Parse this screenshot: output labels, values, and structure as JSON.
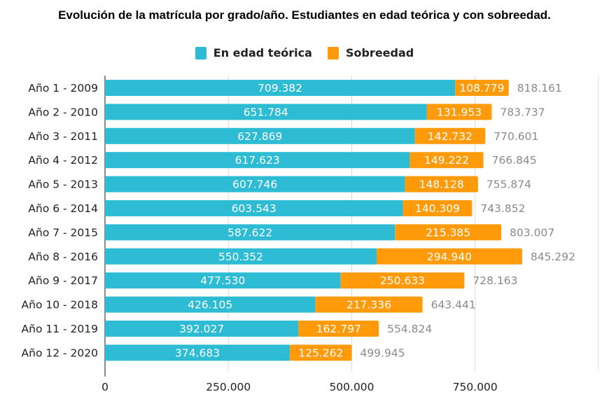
{
  "chart_data": {
    "type": "bar",
    "orientation": "horizontal",
    "stacked": true,
    "title": "Evolución de la matrícula por grado/año. Estudiantes en edad teórica y con sobreedad.",
    "xlabel": "",
    "ylabel": "",
    "xlim": [
      0,
      1000000
    ],
    "xticks": [
      0,
      250000,
      500000,
      750000,
      1000000
    ],
    "xtick_labels": [
      "0",
      "250.000",
      "500.000",
      "750.000",
      ""
    ],
    "grid": true,
    "legend_position": "top-center",
    "categories": [
      "Año 1 - 2009",
      "Año 2 - 2010",
      "Año 3 - 2011",
      "Año 4 - 2012",
      "Año 5 - 2013",
      "Año 6 - 2014",
      "Año 7 - 2015",
      "Año 8 - 2016",
      "Año 9 - 2017",
      "Año 10 - 2018",
      "Año 11 - 2019",
      "Año 12 - 2020"
    ],
    "series": [
      {
        "name": "En edad teórica",
        "color": "#2EBCD5",
        "values": [
          709382,
          651784,
          627869,
          617623,
          607746,
          603543,
          587622,
          550352,
          477530,
          426105,
          392027,
          374683
        ],
        "labels": [
          "709.382",
          "651.784",
          "627.869",
          "617.623",
          "607.746",
          "603.543",
          "587.622",
          "550.352",
          "477.530",
          "426.105",
          "392.027",
          "374.683"
        ]
      },
      {
        "name": "Sobreedad",
        "color": "#FF9A0A",
        "values": [
          108779,
          131953,
          142732,
          149222,
          148128,
          140309,
          215385,
          294940,
          250633,
          217336,
          162797,
          125262
        ],
        "labels": [
          "108.779",
          "131.953",
          "142.732",
          "149.222",
          "148.128",
          "140.309",
          "215.385",
          "294.940",
          "250.633",
          "217.336",
          "162.797",
          "125.262"
        ]
      }
    ],
    "totals": [
      818161,
      783737,
      770601,
      766845,
      755874,
      743852,
      803007,
      845292,
      728163,
      643441,
      554824,
      499945
    ],
    "total_labels": [
      "818.161",
      "783.737",
      "770.601",
      "766.845",
      "755.874",
      "743.852",
      "803.007",
      "845.292",
      "728.163",
      "643.441",
      "554.824",
      "499.945"
    ]
  }
}
